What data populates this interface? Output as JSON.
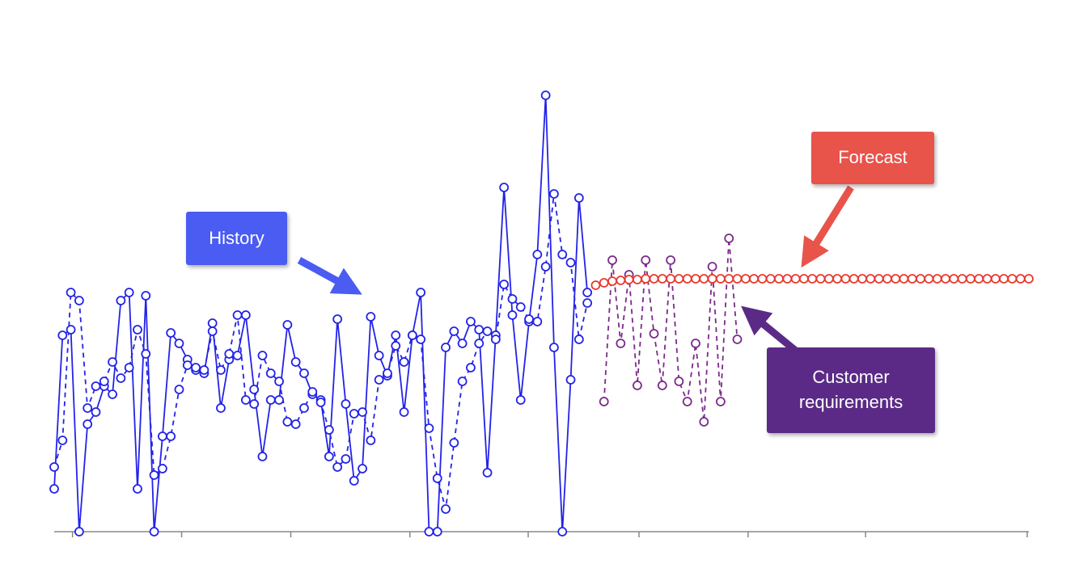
{
  "chart_data": {
    "type": "line",
    "annotations": [
      {
        "text": "History",
        "color": "#4a5cf2"
      },
      {
        "text": "Forecast",
        "color": "#e8534a"
      },
      {
        "text": "Customer requirements",
        "color": "#5b2a86"
      }
    ],
    "xlim": [
      0,
      117
    ],
    "xticks": [
      2.2,
      15.3,
      28.4,
      42.7,
      56.9,
      70.2,
      83.3,
      97.4,
      116.8
    ],
    "ylim": [
      0,
      560
    ],
    "series": [
      {
        "color": "#2323e8",
        "style": "solid",
        "x": [
          0,
          1,
          2,
          3,
          4,
          5,
          6,
          7,
          8,
          9,
          10,
          11,
          12,
          13,
          14,
          15,
          16,
          17,
          18,
          19,
          20,
          21,
          22,
          23,
          24,
          25,
          26,
          27,
          28,
          29,
          30,
          31,
          32,
          33,
          34,
          35,
          36,
          37,
          38,
          39,
          40,
          41,
          42,
          43,
          44,
          45,
          46,
          47,
          48,
          49,
          50,
          51,
          52,
          53,
          54,
          55,
          56,
          57,
          58,
          59,
          60,
          61,
          62,
          63,
          64
        ],
        "values": [
          53,
          243,
          250,
          0,
          133,
          148,
          180,
          170,
          286,
          296,
          53,
          292,
          0,
          118,
          246,
          233,
          213,
          200,
          196,
          258,
          153,
          213,
          218,
          268,
          176,
          93,
          163,
          163,
          256,
          210,
          196,
          170,
          163,
          93,
          263,
          158,
          63,
          78,
          266,
          218,
          193,
          243,
          148,
          243,
          296,
          0,
          0,
          228,
          248,
          233,
          260,
          250,
          73,
          243,
          426,
          268,
          163,
          260,
          343,
          540,
          228,
          0,
          188,
          413,
          296
        ]
      },
      {
        "color": "#2323e8",
        "style": "dashed",
        "x": [
          0,
          1,
          2,
          3,
          4,
          5,
          6,
          7,
          8,
          9,
          10,
          11,
          12,
          13,
          14,
          15,
          16,
          17,
          18,
          19,
          20,
          21,
          22,
          23,
          24,
          25,
          26,
          27,
          28,
          29,
          30,
          31,
          32,
          33,
          34,
          35,
          36,
          37,
          38,
          39,
          40,
          41,
          42,
          43,
          44,
          45,
          46,
          47,
          48,
          49,
          50,
          51,
          52,
          53,
          54,
          55,
          56,
          57,
          58,
          59,
          60,
          61,
          62,
          63,
          64
        ],
        "values": [
          80,
          113,
          296,
          286,
          153,
          180,
          186,
          210,
          190,
          203,
          250,
          220,
          70,
          78,
          118,
          176,
          206,
          203,
          200,
          248,
          200,
          220,
          268,
          163,
          158,
          218,
          196,
          186,
          136,
          133,
          153,
          173,
          160,
          126,
          80,
          90,
          146,
          148,
          113,
          188,
          196,
          230,
          210,
          243,
          238,
          128,
          66,
          28,
          110,
          186,
          203,
          233,
          248,
          238,
          306,
          288,
          278,
          263,
          260,
          328,
          418,
          343,
          333,
          238,
          283
        ]
      },
      {
        "color": "#7b2a8a",
        "style": "dashed",
        "x": [
          66,
          67,
          68,
          69,
          70,
          71,
          72,
          73,
          74,
          75,
          76,
          77,
          78,
          79,
          80,
          81,
          82
        ],
        "values": [
          161,
          336,
          233,
          318,
          181,
          336,
          245,
          181,
          336,
          186,
          161,
          233,
          136,
          328,
          161,
          363,
          238
        ]
      },
      {
        "color": "#e8392e",
        "style": "solid",
        "x": [
          65,
          66,
          67,
          68,
          69,
          70,
          71,
          72,
          73,
          74,
          75,
          76,
          77,
          78,
          79,
          80,
          81,
          82,
          83,
          84,
          85,
          86,
          87,
          88,
          89,
          90,
          91,
          92,
          93,
          94,
          95,
          96,
          97,
          98,
          99,
          100,
          101,
          102,
          103,
          104,
          105,
          106,
          107,
          108,
          109,
          110,
          111,
          112,
          113,
          114,
          115,
          116,
          117
        ],
        "values": [
          305,
          308,
          310,
          311,
          312,
          312,
          313,
          313,
          313,
          313,
          313,
          313,
          313,
          313,
          313,
          313,
          313,
          313,
          313,
          313,
          313,
          313,
          313,
          313,
          313,
          313,
          313,
          313,
          313,
          313,
          313,
          313,
          313,
          313,
          313,
          313,
          313,
          313,
          313,
          313,
          313,
          313,
          313,
          313,
          313,
          313,
          313,
          313,
          313,
          313,
          313,
          313,
          313
        ]
      }
    ]
  }
}
